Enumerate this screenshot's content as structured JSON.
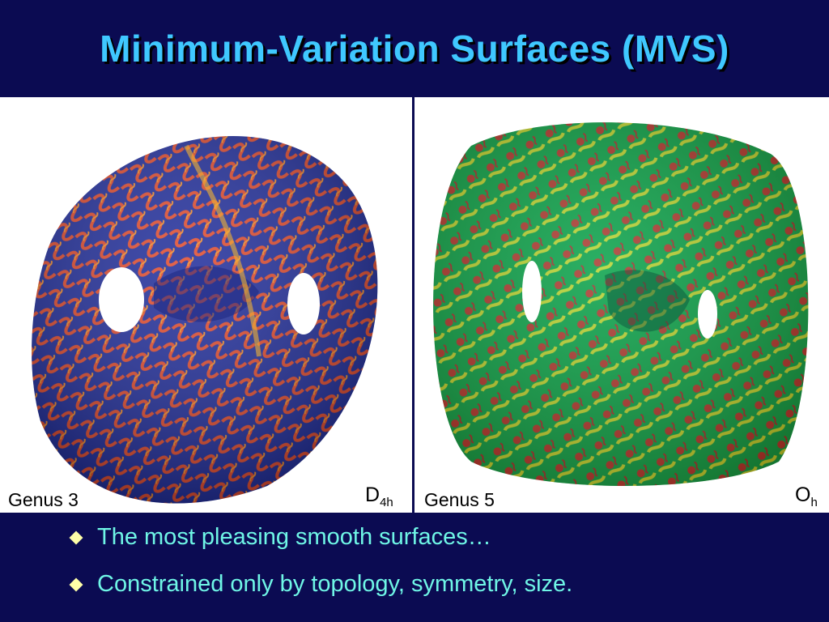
{
  "slide": {
    "title": "Minimum-Variation Surfaces (MVS)",
    "left_panel": {
      "genus_label": "Genus 3",
      "symmetry_main": "D",
      "symmetry_sub": "4h"
    },
    "right_panel": {
      "genus_label": "Genus 5",
      "symmetry_main": "O",
      "symmetry_sub": "h"
    },
    "bullets": [
      "The most pleasing smooth surfaces…",
      "Constrained only by topology, symmetry, size."
    ]
  },
  "colors": {
    "background": "#0b0b52",
    "title": "#3fc8ff",
    "bullet_text": "#6ff6e6",
    "bullet_marker": "#ffffa8"
  }
}
